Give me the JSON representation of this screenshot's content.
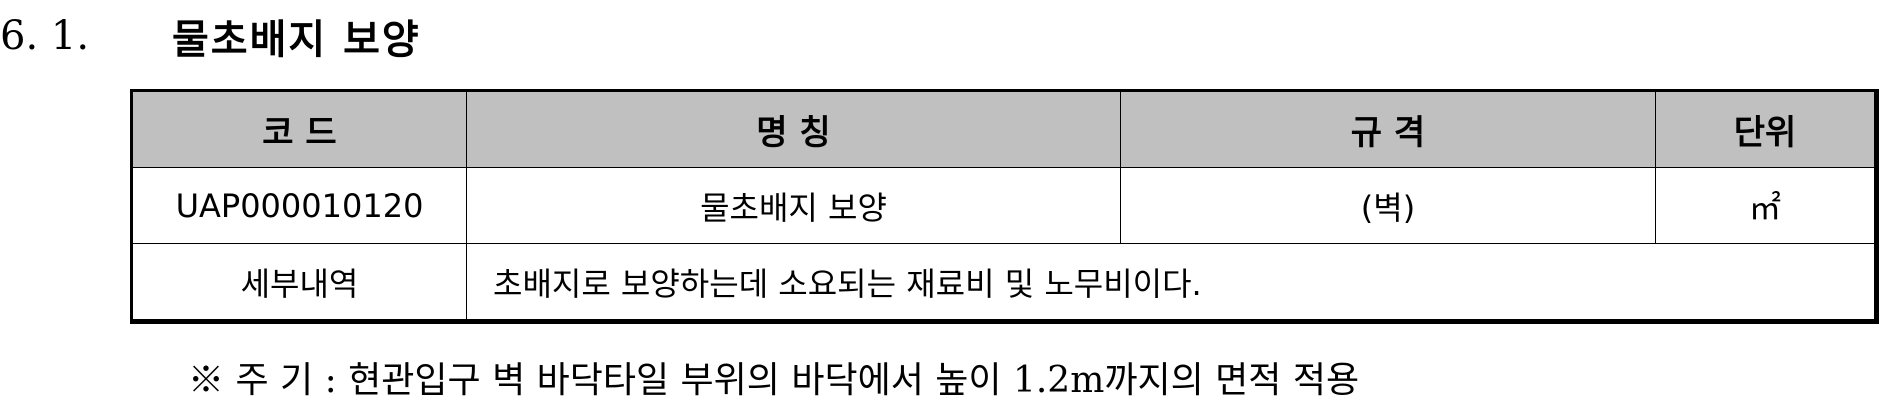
{
  "section": {
    "number": "6. 1.",
    "title": "물초배지 보양"
  },
  "table": {
    "headers": {
      "code": "코    드",
      "name": "명        칭",
      "spec": "규    격",
      "unit": "단위"
    },
    "row": {
      "code": "UAP000010120",
      "name": "물초배지 보양",
      "spec": "(벽)",
      "unit": "㎡"
    },
    "detail": {
      "label": "세부내역",
      "text": "초배지로 보양하는데 소요되는 재료비 및 노무비이다."
    }
  },
  "note": "※ 주   기 : 현관입구 벽 바닥타일 부위의 바닥에서 높이 1.2m까지의 면적 적용"
}
